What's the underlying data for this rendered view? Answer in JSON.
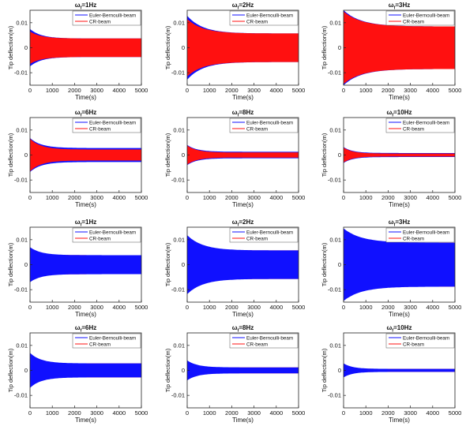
{
  "chart_data": {
    "type": "grid-of-line-plots",
    "xlim": [
      0,
      5000
    ],
    "ylim": [
      -0.015,
      0.015
    ],
    "x_ticks": [
      0,
      1000,
      2000,
      3000,
      4000,
      5000
    ],
    "y_ticks": [
      -0.01,
      0,
      0.01
    ],
    "x_tick_labels": [
      "0",
      "1000",
      "2000",
      "3000",
      "4000",
      "5000"
    ],
    "y_tick_labels": [
      "-0.01",
      "0",
      "0.01"
    ],
    "xlabel": "Time(s)",
    "ylabel": "Tip deflection(m)",
    "legend": [
      "Euler-Bernoulli-beam",
      "CR-beam"
    ],
    "colors": {
      "euler": "#1010ff",
      "cr": "#ff1010"
    },
    "panels": [
      {
        "row": 1,
        "title": "ω_f=1Hz",
        "title_base": "ω",
        "title_sub": "f",
        "title_rest": "=1Hz",
        "front_series": "CR-beam",
        "peak": 0.0065,
        "steady": 0.0037,
        "euler_peak": 0.0075,
        "decay": 500
      },
      {
        "row": 1,
        "title": "ω_f=2Hz",
        "title_base": "ω",
        "title_sub": "f",
        "title_rest": "=2Hz",
        "front_series": "CR-beam",
        "peak": 0.0115,
        "steady": 0.0057,
        "euler_peak": 0.0128,
        "decay": 700
      },
      {
        "row": 1,
        "title": "ω_f=3Hz",
        "title_base": "ω",
        "title_sub": "f",
        "title_rest": "=3Hz",
        "front_series": "CR-beam",
        "peak": 0.0145,
        "steady": 0.0085,
        "euler_peak": 0.015,
        "decay": 800
      },
      {
        "row": 2,
        "title": "ω_f=6Hz",
        "title_base": "ω",
        "title_sub": "f",
        "title_rest": "=6Hz",
        "front_series": "CR-beam",
        "peak": 0.0065,
        "steady": 0.0022,
        "euler_peak": 0.0068,
        "euler_steady": 0.0028,
        "decay": 500
      },
      {
        "row": 2,
        "title": "ω_f=8Hz",
        "title_base": "ω",
        "title_sub": "f",
        "title_rest": "=8Hz",
        "front_series": "CR-beam",
        "peak": 0.0038,
        "steady": 0.001,
        "euler_peak": 0.004,
        "euler_steady": 0.0013,
        "decay": 450
      },
      {
        "row": 2,
        "title": "ω_f=10Hz",
        "title_base": "ω",
        "title_sub": "f",
        "title_rest": "=10Hz",
        "front_series": "CR-beam",
        "peak": 0.003,
        "steady": 0.0006,
        "euler_peak": 0.0032,
        "euler_steady": 0.0008,
        "decay": 400
      },
      {
        "row": 3,
        "title": "ω_f=1Hz",
        "title_base": "ω",
        "title_sub": "f",
        "title_rest": "=1Hz",
        "front_series": "Euler-Bernoulli-beam",
        "peak": 0.007,
        "steady": 0.0038,
        "cr_peak": 0.0068,
        "decay": 500
      },
      {
        "row": 3,
        "title": "ω_f=2Hz",
        "title_base": "ω",
        "title_sub": "f",
        "title_rest": "=2Hz",
        "front_series": "Euler-Bernoulli-beam",
        "peak": 0.0118,
        "steady": 0.0057,
        "cr_peak": 0.0115,
        "decay": 700
      },
      {
        "row": 3,
        "title": "ω_f=3Hz",
        "title_base": "ω",
        "title_sub": "f",
        "title_rest": "=3Hz",
        "front_series": "Euler-Bernoulli-beam",
        "peak": 0.0145,
        "steady": 0.0088,
        "cr_peak": 0.014,
        "decay": 800
      },
      {
        "row": 4,
        "title": "ω_f=6Hz",
        "title_base": "ω",
        "title_sub": "f",
        "title_rest": "=6Hz",
        "front_series": "Euler-Bernoulli-beam",
        "peak": 0.007,
        "steady": 0.0028,
        "cr_peak": 0.0065,
        "decay": 500
      },
      {
        "row": 4,
        "title": "ω_f=8Hz",
        "title_base": "ω",
        "title_sub": "f",
        "title_rest": "=8Hz",
        "front_series": "Euler-Bernoulli-beam",
        "peak": 0.004,
        "steady": 0.0012,
        "cr_peak": 0.0036,
        "decay": 450
      },
      {
        "row": 4,
        "title": "ω_f=10Hz",
        "title_base": "ω",
        "title_sub": "f",
        "title_rest": "=10Hz",
        "front_series": "Euler-Bernoulli-beam",
        "peak": 0.0028,
        "steady": 0.0006,
        "cr_peak": 0.0026,
        "decay": 400
      }
    ]
  }
}
